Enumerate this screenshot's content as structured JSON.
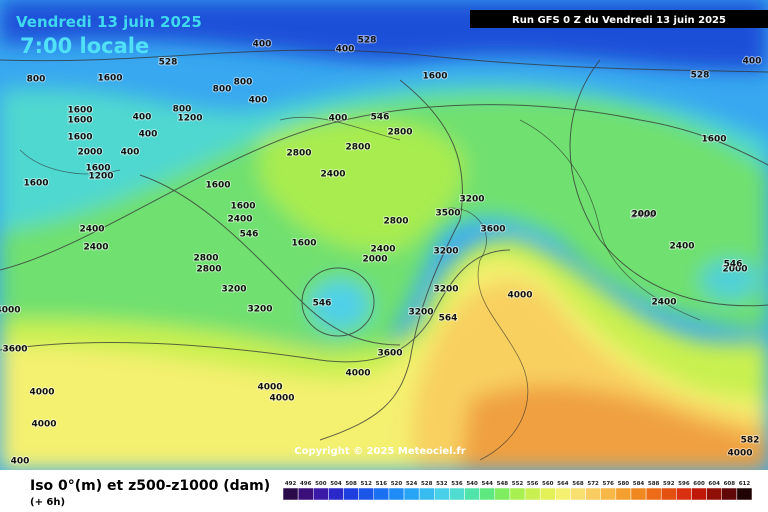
{
  "header": {
    "date": "Vendredi 13 juin 2025",
    "time": "7:00 locale",
    "run": "Run GFS 0 Z du Vendredi 13 juin 2025"
  },
  "map": {
    "copyright": "Copyright © 2025 Meteociel.fr",
    "contour_labels": [
      "528",
      "400",
      "400",
      "800",
      "1600",
      "1600",
      "800",
      "400",
      "800",
      "1600",
      "1200",
      "400",
      "800",
      "1600",
      "400",
      "400",
      "2000",
      "1600",
      "1200",
      "400",
      "1600",
      "1600",
      "400",
      "2800",
      "2800",
      "546",
      "2800",
      "2400",
      "1600",
      "1600",
      "3200",
      "3500",
      "2800",
      "546",
      "1600",
      "2400",
      "2000",
      "3600",
      "3200",
      "2400",
      "2400",
      "2800",
      "2800",
      "3200",
      "3200",
      "3200",
      "4000",
      "546",
      "564",
      "3200",
      "3600",
      "4000",
      "3600",
      "4000",
      "4000",
      "4000",
      "4000",
      "4000",
      "2000",
      "2400",
      "2400",
      "528",
      "1600",
      "2400",
      "546",
      "2000",
      "2400",
      "4000",
      "582",
      "400",
      "528"
    ]
  },
  "legend": {
    "title": "Iso 0°(m) et z500-z1000 (dam)",
    "subtitle": "(+ 6h)",
    "scale": [
      "492",
      "496",
      "500",
      "504",
      "508",
      "512",
      "516",
      "520",
      "524",
      "528",
      "532",
      "536",
      "540",
      "544",
      "548",
      "552",
      "556",
      "560",
      "564",
      "568",
      "572",
      "576",
      "580",
      "584",
      "588",
      "592",
      "596",
      "600",
      "604",
      "608",
      "612"
    ],
    "colors": [
      "#2b0a4a",
      "#3a0f7a",
      "#3c1aa8",
      "#2a28c8",
      "#1e3ee0",
      "#1a56e8",
      "#1a70f0",
      "#1e8cf4",
      "#28a4f4",
      "#38bcf0",
      "#48d0e8",
      "#50dcd0",
      "#50e4a8",
      "#60e880",
      "#80ec60",
      "#a8f050",
      "#c8f050",
      "#e4f058",
      "#f4f070",
      "#f8e070",
      "#f8cc60",
      "#f8b848",
      "#f4a030",
      "#f08820",
      "#ec6c18",
      "#e45010",
      "#d83010",
      "#c01808",
      "#901008",
      "#600808",
      "#200404"
    ]
  }
}
